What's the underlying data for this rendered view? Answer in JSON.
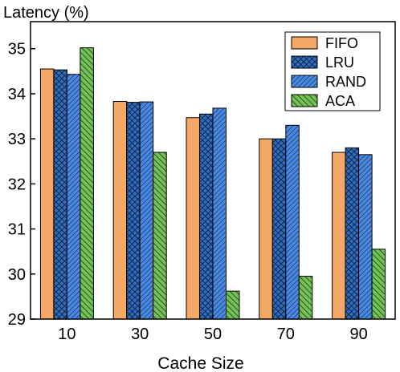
{
  "chart_data": {
    "type": "bar",
    "ylabel": "Latency (%)",
    "xlabel": "Cache Size",
    "categories": [
      "10",
      "30",
      "50",
      "70",
      "90"
    ],
    "ylim": [
      29,
      35.6
    ],
    "yticks": [
      29,
      30,
      31,
      32,
      33,
      34,
      35
    ],
    "legend_position": "top-right",
    "grid": false,
    "series": [
      {
        "name": "FIFO",
        "color": "#f5a866",
        "pattern": "solid",
        "values": [
          34.55,
          33.83,
          33.47,
          33.0,
          32.7
        ]
      },
      {
        "name": "LRU",
        "color": "#2f6dc0",
        "pattern": "crosshatch",
        "values": [
          34.53,
          33.81,
          33.55,
          33.0,
          32.8
        ]
      },
      {
        "name": "RAND",
        "color": "#4a8be0",
        "pattern": "diagonal",
        "values": [
          34.43,
          33.82,
          33.68,
          33.3,
          32.65
        ]
      },
      {
        "name": "ACA",
        "color": "#76c05a",
        "pattern": "diagonal-reverse",
        "values": [
          35.02,
          32.7,
          29.62,
          29.95,
          30.55
        ]
      }
    ]
  }
}
